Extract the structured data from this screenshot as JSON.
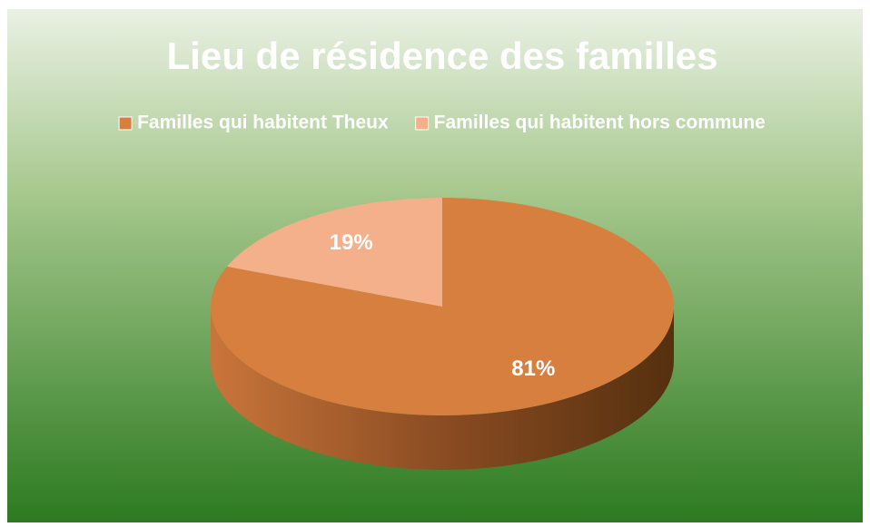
{
  "chart_data": {
    "type": "pie",
    "title": "Lieu de résidence des familles",
    "categories": [
      "Familles qui habitent Theux",
      "Familles qui habitent hors commune"
    ],
    "values": [
      81,
      19
    ],
    "value_labels": [
      "81%",
      "19%"
    ],
    "colors": [
      "#d77f3e",
      "#f4b08a"
    ],
    "legend": "top"
  }
}
